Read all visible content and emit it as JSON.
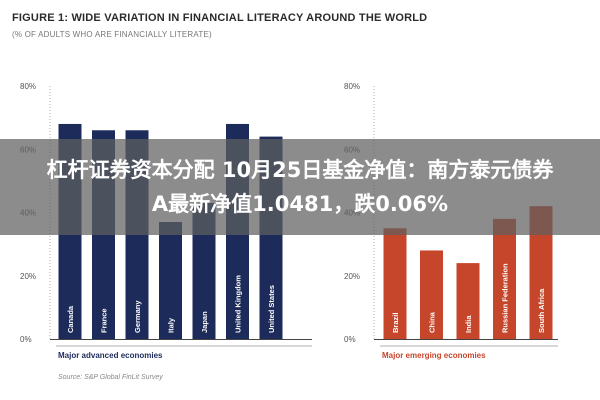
{
  "figure": {
    "title": "FIGURE 1: WIDE VARIATION IN FINANCIAL LITERACY AROUND THE WORLD",
    "subtitle": "(% OF ADULTS WHO ARE FINANCIALLY LITERATE)",
    "source": "Source: S&P Global FinLit Survey"
  },
  "overlay": {
    "line1": "杠杆证券资本分配 10月25日基金净值：南方泰元债券",
    "line2": "A最新净值1.0481，跌0.06%"
  },
  "chart_data": [
    {
      "type": "bar",
      "xlabel": "Major advanced economies",
      "ylabel": "",
      "ylim": [
        0,
        80
      ],
      "yticks": [
        "0%",
        "20%",
        "40%",
        "60%",
        "80%"
      ],
      "color": "#1c2b5a",
      "categories": [
        "Canada",
        "France",
        "Germany",
        "Italy",
        "Japan",
        "United Kingdom",
        "United States"
      ],
      "values": [
        68,
        66,
        66,
        37,
        43,
        68,
        64
      ]
    },
    {
      "type": "bar",
      "xlabel": "Major emerging economies",
      "ylabel": "",
      "ylim": [
        0,
        80
      ],
      "yticks": [
        "0%",
        "20%",
        "40%",
        "60%",
        "80%"
      ],
      "color": "#c6462b",
      "categories": [
        "Brazil",
        "China",
        "India",
        "Russian Federation",
        "South Africa"
      ],
      "values": [
        35,
        28,
        24,
        38,
        42
      ]
    }
  ]
}
